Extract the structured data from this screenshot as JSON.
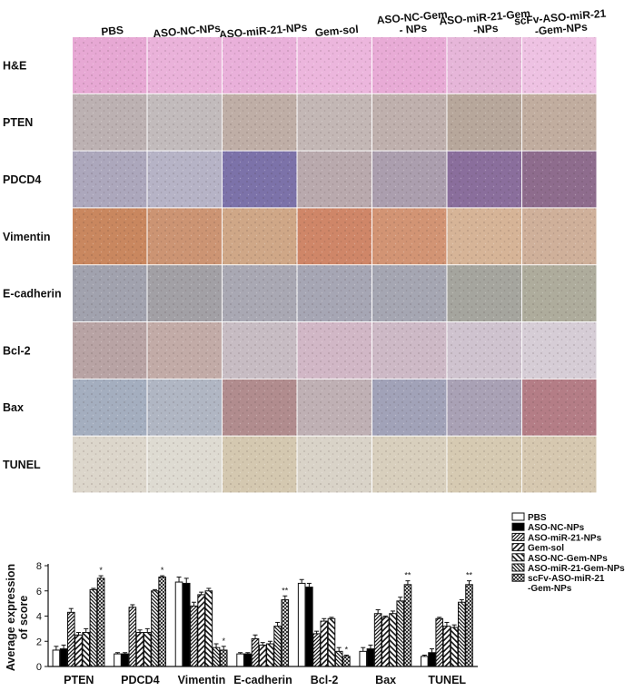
{
  "panel": {
    "columns": [
      "PBS",
      "ASO-NC-NPs",
      "ASO-miR-21-NPs",
      "Gem-sol",
      "ASO-NC-Gem\n- NPs",
      "ASO-miR-21-Gem\n-NPs",
      "scFv-ASO-miR-21\n-Gem-NPs"
    ],
    "rows": [
      "H&E",
      "PTEN",
      "PDCD4",
      "Vimentin",
      "E-cadherin",
      "Bcl-2",
      "Bax",
      "TUNEL"
    ],
    "row_tints": [
      [
        "#e7a8d4",
        "#eab2da",
        "#e9b0da",
        "#ecb6dd",
        "#e8abd6",
        "#e6b6d9",
        "#eec2e3"
      ],
      [
        "#bcb1b2",
        "#c2bbbc",
        "#bfaea6",
        "#c3b7b5",
        "#bfb0ad",
        "#b7a79b",
        "#c1ad9f"
      ],
      [
        "#aca7bc",
        "#b6b3c6",
        "#7c72a9",
        "#b9a9ad",
        "#ab9eae",
        "#8a6e9c",
        "#8e6c8d"
      ],
      [
        "#c9875f",
        "#cc9473",
        "#cfa787",
        "#cf8668",
        "#d29474",
        "#d6b497",
        "#cfb09a"
      ],
      [
        "#a1a2ae",
        "#a2a0a5",
        "#a9a8b3",
        "#a6a6b4",
        "#a5a6b2",
        "#a5a59e",
        "#aeac9c"
      ],
      [
        "#b8a3a4",
        "#c2aba7",
        "#c7bcc3",
        "#d1b7c6",
        "#cdb9c6",
        "#cfc3cf",
        "#d6cdd6"
      ],
      [
        "#a4aebf",
        "#b0b6c3",
        "#b18c8e",
        "#bfb0b4",
        "#a1a2b8",
        "#a9a1b5",
        "#b47d86"
      ],
      [
        "#dcd6cb",
        "#dedbd2",
        "#d4c8b0",
        "#d9d3c8",
        "#d8cfbd",
        "#d6cab2",
        "#d6c8b0"
      ]
    ]
  },
  "chart_data": {
    "type": "bar",
    "ylabel": "Average expression\nof score",
    "ylim": [
      0,
      8
    ],
    "yticks": [
      0,
      2,
      4,
      6,
      8
    ],
    "categories": [
      "PTEN",
      "PDCD4",
      "Vimentin",
      "E-cadherin",
      "Bcl-2",
      "Bax",
      "TUNEL"
    ],
    "series": [
      {
        "name": "PBS",
        "values": [
          1.3,
          1.0,
          6.7,
          1.0,
          6.6,
          1.2,
          0.8
        ],
        "errors": [
          0.3,
          0.1,
          0.4,
          0.1,
          0.3,
          0.3,
          0.1
        ]
      },
      {
        "name": "ASO-NC-NPs",
        "values": [
          1.4,
          1.0,
          6.6,
          1.0,
          6.3,
          1.4,
          1.1
        ],
        "errors": [
          0.3,
          0.1,
          0.4,
          0.1,
          0.3,
          0.3,
          0.3
        ]
      },
      {
        "name": "ASO-miR-21-NPs",
        "values": [
          4.3,
          4.7,
          4.8,
          2.2,
          2.6,
          4.2,
          3.8
        ],
        "errors": [
          0.3,
          0.2,
          0.3,
          0.3,
          0.2,
          0.3,
          0.1
        ]
      },
      {
        "name": "Gem-sol",
        "values": [
          2.5,
          2.7,
          5.7,
          1.7,
          3.6,
          3.9,
          3.2
        ],
        "errors": [
          0.2,
          0.2,
          0.2,
          0.2,
          0.2,
          0.1,
          0.3
        ]
      },
      {
        "name": "ASO-NC-Gem-NPs",
        "values": [
          2.7,
          2.7,
          6.0,
          1.8,
          3.8,
          4.2,
          3.1
        ],
        "errors": [
          0.3,
          0.3,
          0.2,
          0.2,
          0.1,
          0.2,
          0.2
        ]
      },
      {
        "name": "ASO-miR-21-Gem-NPs",
        "values": [
          6.1,
          6.0,
          1.5,
          3.2,
          1.2,
          5.2,
          5.1
        ],
        "errors": [
          0.1,
          0.1,
          0.3,
          0.3,
          0.3,
          0.3,
          0.2
        ]
      },
      {
        "name": "scFv-ASO-miR-21\n-Gem-NPs",
        "values": [
          7.0,
          7.1,
          1.3,
          5.3,
          0.8,
          6.5,
          6.5
        ],
        "errors": [
          0.2,
          0.1,
          0.3,
          0.3,
          0.1,
          0.3,
          0.3
        ]
      }
    ],
    "significance": [
      "*",
      "*",
      "*",
      "**",
      "*",
      "**",
      "**"
    ],
    "legend_position": "top-right"
  }
}
